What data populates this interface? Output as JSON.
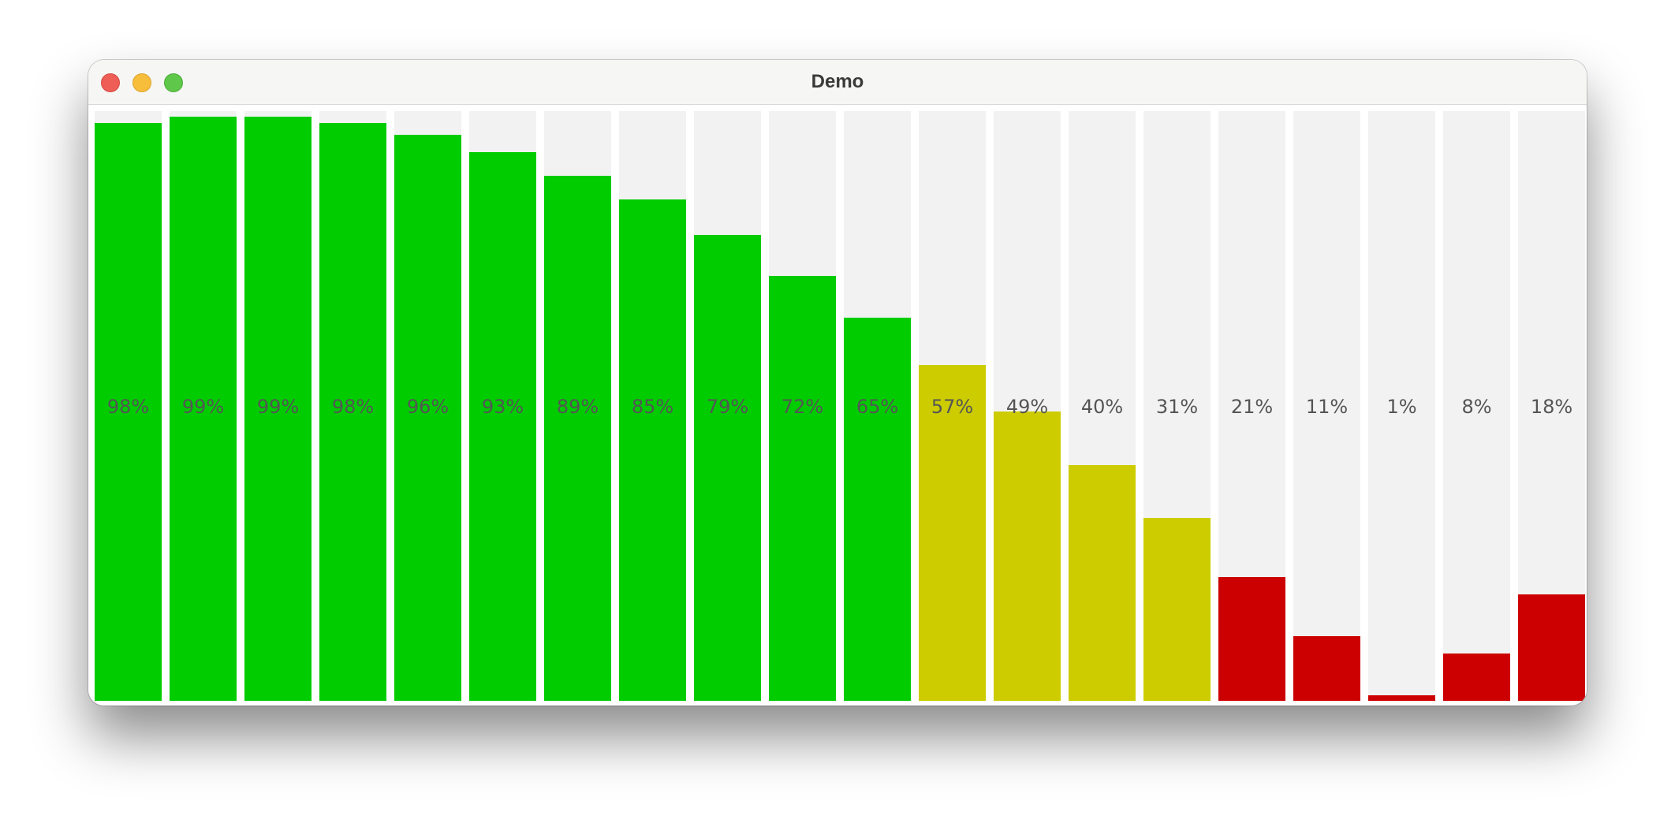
{
  "window": {
    "title": "Demo"
  },
  "bars": [
    {
      "label": "98%",
      "value": 98,
      "color": "#00cc00"
    },
    {
      "label": "99%",
      "value": 99,
      "color": "#00cc00"
    },
    {
      "label": "99%",
      "value": 99,
      "color": "#00cc00"
    },
    {
      "label": "98%",
      "value": 98,
      "color": "#00cc00"
    },
    {
      "label": "96%",
      "value": 96,
      "color": "#00cc00"
    },
    {
      "label": "93%",
      "value": 93,
      "color": "#00cc00"
    },
    {
      "label": "89%",
      "value": 89,
      "color": "#00cc00"
    },
    {
      "label": "85%",
      "value": 85,
      "color": "#00cc00"
    },
    {
      "label": "79%",
      "value": 79,
      "color": "#00cc00"
    },
    {
      "label": "72%",
      "value": 72,
      "color": "#00cc00"
    },
    {
      "label": "65%",
      "value": 65,
      "color": "#00cc00"
    },
    {
      "label": "57%",
      "value": 57,
      "color": "#cccc00"
    },
    {
      "label": "49%",
      "value": 49,
      "color": "#cccc00"
    },
    {
      "label": "40%",
      "value": 40,
      "color": "#cccc00"
    },
    {
      "label": "31%",
      "value": 31,
      "color": "#cccc00"
    },
    {
      "label": "21%",
      "value": 21,
      "color": "#cc0000"
    },
    {
      "label": "11%",
      "value": 11,
      "color": "#cc0000"
    },
    {
      "label": "1%",
      "value": 1,
      "color": "#cc0000"
    },
    {
      "label": "8%",
      "value": 8,
      "color": "#cc0000"
    },
    {
      "label": "18%",
      "value": 18,
      "color": "#cc0000"
    }
  ]
}
